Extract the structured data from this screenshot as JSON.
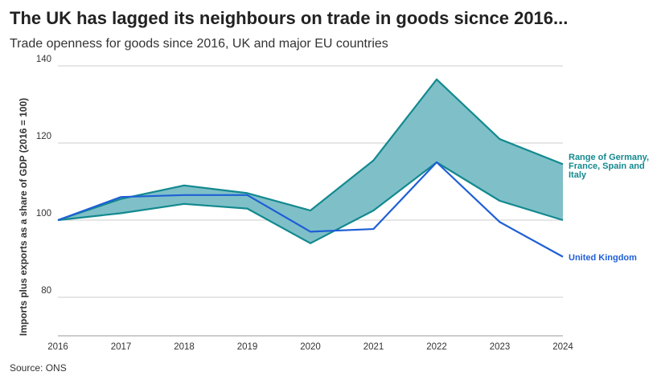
{
  "header": {
    "title": "The UK has lagged its neighbours on trade in goods sicnce 2016...",
    "subtitle": "Trade openness for goods since 2016, UK and major EU countries"
  },
  "footer": {
    "source": "Source: ONS"
  },
  "colors": {
    "band_fill": "#7fc0c8",
    "band_stroke": "#13898f",
    "uk_line": "#1f5fd6",
    "grid": "#cccccc"
  },
  "chart_data": {
    "type": "area",
    "title": "The UK has lagged its neighbours on trade in goods sicnce 2016...",
    "subtitle": "Trade openness for goods since 2016, UK and major EU countries",
    "xlabel": "",
    "ylabel": "Imports plus exports as a share of GDP (2016 = 100)",
    "x": [
      2016,
      2017,
      2018,
      2019,
      2020,
      2021,
      2022,
      2023,
      2024
    ],
    "x_tick_labels": [
      "2016",
      "2017",
      "2018",
      "2019",
      "2020",
      "2021",
      "2022",
      "2023",
      "2024"
    ],
    "y_ticks": [
      80,
      100,
      120,
      140
    ],
    "y_tick_labels": [
      "80",
      "100",
      "120",
      "140"
    ],
    "ylim": [
      70,
      140
    ],
    "grid": true,
    "series": [
      {
        "name": "Range of Germany, France, Spain and Italy",
        "label_lines": [
          "Range of Germany,",
          "France, Spain and",
          "Italy"
        ],
        "kind": "band",
        "upper": [
          100,
          105.5,
          109,
          107,
          102.5,
          115.5,
          136.5,
          121,
          114.5
        ],
        "lower": [
          100,
          101.8,
          104.2,
          103,
          94,
          102.5,
          115,
          105,
          100
        ]
      },
      {
        "name": "United Kingdom",
        "label_lines": [
          "United Kingdom"
        ],
        "kind": "line",
        "values": [
          100,
          106,
          106.5,
          106.5,
          97,
          97.7,
          115,
          99.5,
          90.5
        ]
      }
    ]
  }
}
